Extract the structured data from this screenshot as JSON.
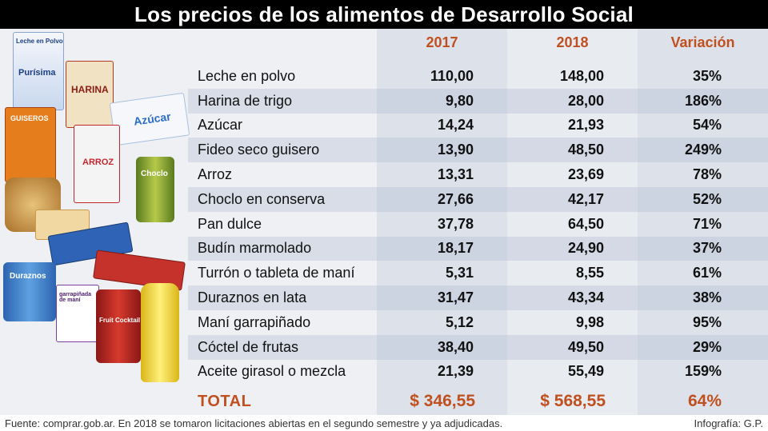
{
  "title": "Los precios de los alimentos de Desarrollo Social",
  "columns": {
    "y1": "2017",
    "y2": "2018",
    "var": "Variación"
  },
  "rows": [
    {
      "name": "Leche en polvo",
      "v2017": "110,00",
      "v2018": "148,00",
      "var": "35%"
    },
    {
      "name": "Harina de trigo",
      "v2017": "9,80",
      "v2018": "28,00",
      "var": "186%"
    },
    {
      "name": "Azúcar",
      "v2017": "14,24",
      "v2018": "21,93",
      "var": "54%"
    },
    {
      "name": "Fideo seco guisero",
      "v2017": "13,90",
      "v2018": "48,50",
      "var": "249%"
    },
    {
      "name": "Arroz",
      "v2017": "13,31",
      "v2018": "23,69",
      "var": "78%"
    },
    {
      "name": "Choclo en conserva",
      "v2017": "27,66",
      "v2018": "42,17",
      "var": "52%"
    },
    {
      "name": "Pan dulce",
      "v2017": "37,78",
      "v2018": "64,50",
      "var": "71%"
    },
    {
      "name": "Budín marmolado",
      "v2017": "18,17",
      "v2018": "24,90",
      "var": "37%"
    },
    {
      "name": "Turrón o tableta de maní",
      "v2017": "5,31",
      "v2018": "8,55",
      "var": "61%"
    },
    {
      "name": "Duraznos en lata",
      "v2017": "31,47",
      "v2018": "43,34",
      "var": "38%"
    },
    {
      "name": "Maní garrapiñado",
      "v2017": "5,12",
      "v2018": "9,98",
      "var": "95%"
    },
    {
      "name": "Cóctel de frutas",
      "v2017": "38,40",
      "v2018": "49,50",
      "var": "29%"
    },
    {
      "name": "Aceite girasol o mezcla",
      "v2017": "21,39",
      "v2018": "55,49",
      "var": "159%"
    }
  ],
  "total": {
    "label": "TOTAL",
    "v2017": "$ 346,55",
    "v2018": "$ 568,55",
    "var": "64%"
  },
  "footer": {
    "source": "Fuente: comprar.gob.ar. En 2018 se tomaron licitaciones abiertas en el segundo semestre y ya adjudicadas.",
    "credit": "Infografía: G.P."
  },
  "product_labels": {
    "leche": "Leche en Polvo",
    "purisima": "Purísima",
    "harina": "HARINA",
    "azucar": "Azúcar",
    "guiseros": "GUISEROS",
    "arroz": "ARROZ",
    "choclo": "Choclo",
    "duraznos": "Duraznos",
    "garrapinada": "garrapiñada de maní",
    "coctel": "Fruit Cocktail"
  },
  "colors": {
    "accent": "#c0501f",
    "title_bg": "#000000"
  }
}
